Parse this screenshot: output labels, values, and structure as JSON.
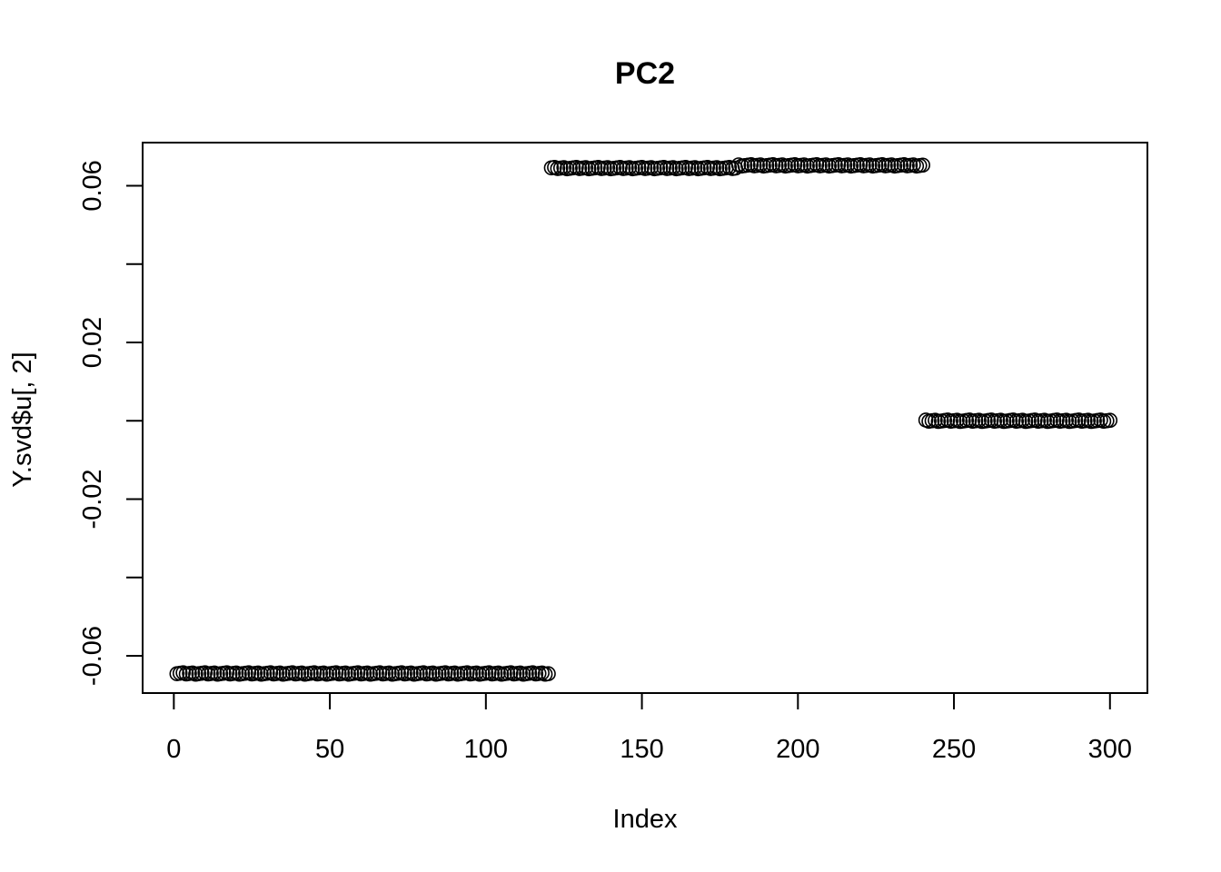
{
  "chart_data": {
    "type": "scatter",
    "title": "PC2",
    "xlabel": "Index",
    "ylabel": "Y.svd$u[, 2]",
    "xlim": [
      -10,
      312
    ],
    "ylim": [
      -0.0695,
      0.071
    ],
    "x_ticks": [
      0,
      50,
      100,
      150,
      200,
      250,
      300
    ],
    "x_tick_labels": [
      "0",
      "50",
      "100",
      "150",
      "200",
      "250",
      "300"
    ],
    "y_ticks": [
      -0.06,
      -0.04,
      -0.02,
      0.0,
      0.02,
      0.04,
      0.06
    ],
    "y_tick_labels": [
      "-0.06",
      "",
      "-0.02",
      "",
      "0.02",
      "",
      "0.06"
    ],
    "grid": false,
    "legend": "none",
    "marker": "open-circle",
    "groups": [
      {
        "x_from": 1,
        "x_to": 120,
        "y": -0.0645
      },
      {
        "x_from": 121,
        "x_to": 180,
        "y": 0.0645
      },
      {
        "x_from": 181,
        "x_to": 240,
        "y": 0.0652
      },
      {
        "x_from": 241,
        "x_to": 300,
        "y": 0.0
      }
    ]
  }
}
